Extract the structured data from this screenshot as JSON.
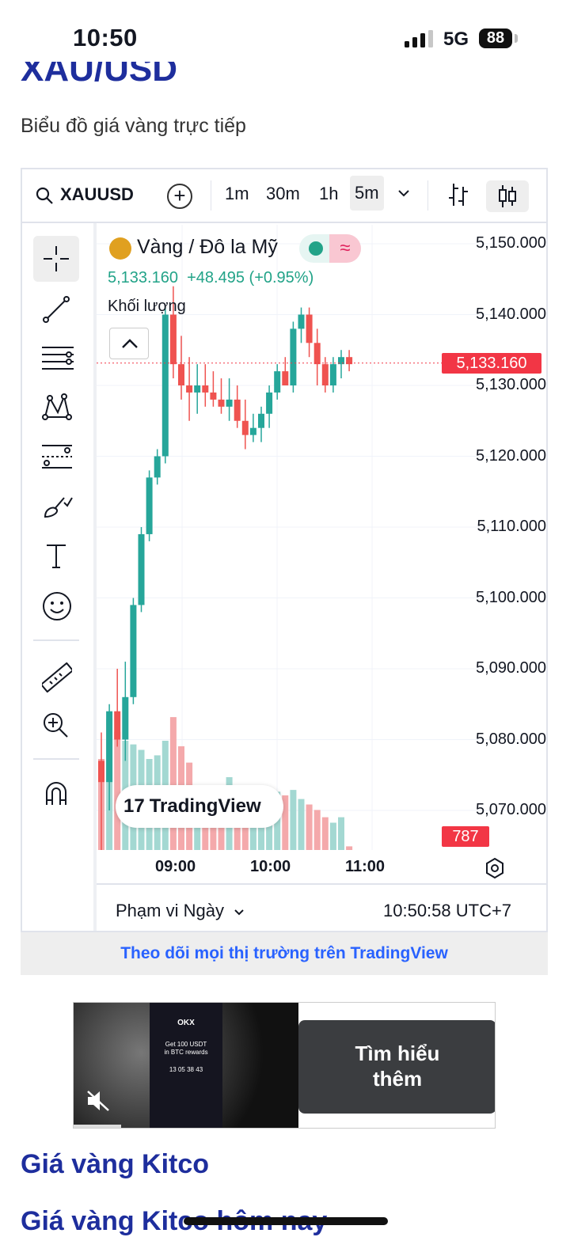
{
  "status": {
    "time": "10:50",
    "network": "5G",
    "battery": "88"
  },
  "page": {
    "title": "XAU/USD",
    "subtitle": "Biểu đồ giá vàng trực tiếp"
  },
  "toolbar": {
    "symbol": "XAUUSD",
    "timeframes": [
      "1m",
      "30m",
      "1h",
      "5m"
    ],
    "active_timeframe": "5m"
  },
  "legend": {
    "name": "Vàng / Đô la Mỹ",
    "price": "5,133.160",
    "change": "+48.495",
    "change_pct": "(+0.95%)",
    "volume_label": "Khối lượng"
  },
  "chart_data": {
    "type": "candlestick",
    "y_ticks": [
      "5,150.000",
      "5,140.000",
      "5,130.000",
      "5,120.000",
      "5,110.000",
      "5,100.000",
      "5,090.000",
      "5,080.000",
      "5,070.000"
    ],
    "ylim": [
      5065,
      5152
    ],
    "x_ticks": [
      "09:00",
      "10:00",
      "11:00"
    ],
    "current_price": "5,133.160",
    "current_volume": "787",
    "candles": [
      {
        "o": 5077,
        "h": 5081,
        "l": 5064,
        "c": 5074
      },
      {
        "o": 5074,
        "h": 5085,
        "l": 5070,
        "c": 5084
      },
      {
        "o": 5084,
        "h": 5090,
        "l": 5079,
        "c": 5080
      },
      {
        "o": 5080,
        "h": 5091,
        "l": 5077,
        "c": 5086
      },
      {
        "o": 5086,
        "h": 5100,
        "l": 5085,
        "c": 5099
      },
      {
        "o": 5099,
        "h": 5110,
        "l": 5098,
        "c": 5109
      },
      {
        "o": 5109,
        "h": 5118,
        "l": 5108,
        "c": 5117
      },
      {
        "o": 5117,
        "h": 5121,
        "l": 5116,
        "c": 5120
      },
      {
        "o": 5120,
        "h": 5141,
        "l": 5119,
        "c": 5140
      },
      {
        "o": 5140,
        "h": 5144,
        "l": 5131,
        "c": 5133
      },
      {
        "o": 5133,
        "h": 5137,
        "l": 5128,
        "c": 5130
      },
      {
        "o": 5130,
        "h": 5134,
        "l": 5125,
        "c": 5129
      },
      {
        "o": 5129,
        "h": 5133,
        "l": 5126,
        "c": 5130
      },
      {
        "o": 5130,
        "h": 5133,
        "l": 5127,
        "c": 5129
      },
      {
        "o": 5129,
        "h": 5132,
        "l": 5127,
        "c": 5128
      },
      {
        "o": 5128,
        "h": 5131,
        "l": 5126,
        "c": 5127
      },
      {
        "o": 5127,
        "h": 5131,
        "l": 5125,
        "c": 5128
      },
      {
        "o": 5128,
        "h": 5130,
        "l": 5124,
        "c": 5125
      },
      {
        "o": 5125,
        "h": 5128,
        "l": 5121,
        "c": 5123
      },
      {
        "o": 5123,
        "h": 5126,
        "l": 5122,
        "c": 5124
      },
      {
        "o": 5124,
        "h": 5127,
        "l": 5122,
        "c": 5126
      },
      {
        "o": 5126,
        "h": 5130,
        "l": 5124,
        "c": 5129
      },
      {
        "o": 5129,
        "h": 5133,
        "l": 5128,
        "c": 5132
      },
      {
        "o": 5132,
        "h": 5134,
        "l": 5130,
        "c": 5130
      },
      {
        "o": 5130,
        "h": 5139,
        "l": 5129,
        "c": 5138
      },
      {
        "o": 5138,
        "h": 5141,
        "l": 5136,
        "c": 5140
      },
      {
        "o": 5140,
        "h": 5141,
        "l": 5134,
        "c": 5136
      },
      {
        "o": 5136,
        "h": 5138,
        "l": 5130,
        "c": 5133
      },
      {
        "o": 5133,
        "h": 5134,
        "l": 5129,
        "c": 5130
      },
      {
        "o": 5130,
        "h": 5134,
        "l": 5129,
        "c": 5133
      },
      {
        "o": 5133,
        "h": 5135,
        "l": 5131,
        "c": 5134
      },
      {
        "o": 5134,
        "h": 5135,
        "l": 5132,
        "c": 5133
      }
    ],
    "volumes": [
      0.5,
      0.72,
      0.65,
      0.6,
      0.58,
      0.55,
      0.5,
      0.52,
      0.6,
      0.73,
      0.57,
      0.48,
      0.35,
      0.3,
      0.28,
      0.32,
      0.4,
      0.33,
      0.25,
      0.28,
      0.3,
      0.34,
      0.32,
      0.3,
      0.33,
      0.28,
      0.25,
      0.22,
      0.18,
      0.15,
      0.18,
      0.02
    ],
    "colors": {
      "up": "#26a69a",
      "down": "#ef5350",
      "vol_up": "#a3d8d2",
      "vol_down": "#f4a9ab"
    }
  },
  "bottom": {
    "range_label": "Phạm vi Ngày",
    "clock": "10:50:58 UTC+7"
  },
  "watermark": "TradingView",
  "footer_link": "Theo dõi mọi thị trường trên TradingView",
  "ad": {
    "button_line1": "Tìm hiểu",
    "button_line2": "thêm",
    "phone_text": "Get 100 USDT",
    "phone_text2": "in BTC rewards",
    "countdown": [
      "13",
      "05",
      "38",
      "43"
    ]
  },
  "headings": {
    "kitco": "Giá vàng Kitco",
    "kitco_today": "Giá vàng Kitco hôm nay"
  }
}
